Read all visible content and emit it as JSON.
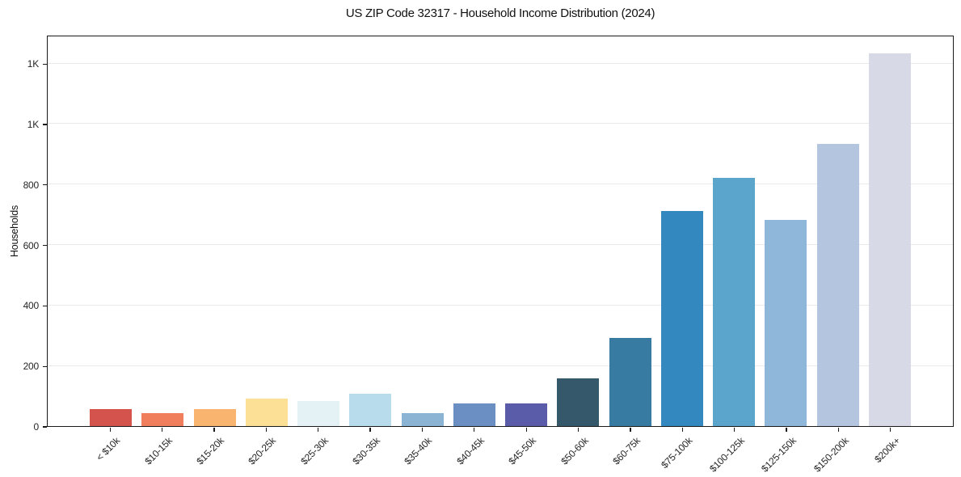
{
  "chart_data": {
    "type": "bar",
    "title": "US ZIP Code 32317 - Household Income Distribution (2024)",
    "xlabel": "",
    "ylabel": "Households",
    "categories": [
      "< $10k",
      "$10-15k",
      "$15-20k",
      "$20-25k",
      "$25-30k",
      "$30-35k",
      "$35-40k",
      "$40-45k",
      "$45-50k",
      "$50-60k",
      "$60-75k",
      "$75-100k",
      "$100-125k",
      "$125-150k",
      "$150-200k",
      "$200k+"
    ],
    "values": [
      55,
      44,
      55,
      90,
      84,
      108,
      43,
      76,
      76,
      159,
      292,
      711,
      820,
      681,
      934,
      1232
    ],
    "bar_colors": [
      "#d4544d",
      "#f07d5c",
      "#f9b46f",
      "#fce096",
      "#e4f1f5",
      "#b8dcec",
      "#8bb3d3",
      "#6b8fc2",
      "#5a5caa",
      "#35596b",
      "#387ba2",
      "#3389bf",
      "#5ba4cb",
      "#8fb7d9",
      "#b4c5e0",
      "#d8d9e6"
    ],
    "ylim": [
      0,
      1294
    ],
    "yticks": [
      0,
      200,
      400,
      600,
      800,
      1000,
      1200
    ],
    "ytick_labels": [
      "0",
      "200",
      "400",
      "600",
      "800",
      "1K",
      "1K"
    ],
    "grid": "horizontal",
    "gridline_color": "#e9e9ec",
    "axis_color": "#1a1a1a",
    "tick_text_color": "#262626",
    "background": "#ffffff",
    "legend": "none"
  }
}
